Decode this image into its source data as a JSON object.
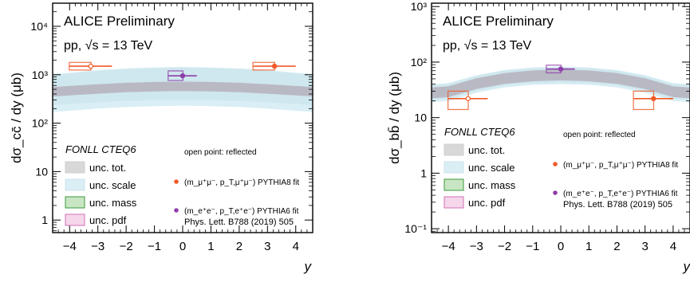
{
  "chart_data": [
    {
      "type": "scatter",
      "title": "ALICE Preliminary",
      "subtitle": "pp, √s = 13 TeV",
      "xlabel": "y",
      "ylabel": "dσ_cc̄ / dy (μb)",
      "xlim": [
        -4.6,
        4.6
      ],
      "ylim": [
        0.5,
        50000
      ],
      "yscale": "log",
      "xticks": [
        "−4",
        "−3",
        "−2",
        "−1",
        "0",
        "1",
        "2",
        "3",
        "4"
      ],
      "yticks": [
        "1",
        "10",
        "10²",
        "10³",
        "10⁴"
      ],
      "grid": false,
      "band_label": "FONLL CTEQ6",
      "note": "open point: reflected",
      "reference": "Phys. Lett. B788 (2019) 505",
      "legend_bands": [
        "unc. tot.",
        "unc. scale",
        "unc. mass",
        "unc. pdf"
      ],
      "legend_points": [
        "(m_μ⁺μ⁻, p_T,μ⁺μ⁻) PYTHIA8 fit",
        "(m_e⁺e⁻, p_T,e⁺e⁻) PYTHIA6 fit"
      ],
      "fonll": {
        "x": [
          -4,
          -3,
          -2,
          -1,
          0,
          1,
          2,
          3,
          4
        ],
        "central": [
          480,
          520,
          560,
          580,
          590,
          580,
          560,
          520,
          480
        ],
        "tot_low": [
          180,
          200,
          215,
          225,
          230,
          225,
          215,
          200,
          180
        ],
        "tot_high": [
          1100,
          1250,
          1350,
          1420,
          1450,
          1420,
          1350,
          1250,
          1100
        ],
        "scale_low": [
          250,
          270,
          290,
          300,
          305,
          300,
          290,
          270,
          250
        ],
        "scale_high": [
          1050,
          1200,
          1300,
          1370,
          1400,
          1370,
          1300,
          1200,
          1050
        ]
      },
      "series": [
        {
          "name": "(m_μ⁺μ⁻, p_T,μ⁺μ⁻) PYTHIA8 fit",
          "color": "#f05a28",
          "points": [
            {
              "x": -3.25,
              "y": 1500,
              "xerr": 0.75,
              "syst_low": 1250,
              "syst_high": 1800,
              "open": true
            },
            {
              "x": 3.25,
              "y": 1500,
              "xerr": 0.75,
              "syst_low": 1250,
              "syst_high": 1800,
              "open": false
            }
          ]
        },
        {
          "name": "(m_e⁺e⁻, p_T,e⁺e⁻) PYTHIA6 fit",
          "color": "#8e3fa8",
          "points": [
            {
              "x": 0,
              "y": 950,
              "xerr": 0.5,
              "syst_low": 760,
              "syst_high": 1200,
              "open": false
            }
          ]
        }
      ]
    },
    {
      "type": "scatter",
      "title": "ALICE Preliminary",
      "subtitle": "pp, √s = 13 TeV",
      "xlabel": "y",
      "ylabel": "dσ_bb̄ / dy (μb)",
      "xlim": [
        -4.6,
        4.6
      ],
      "ylim": [
        0.08,
        1100
      ],
      "yscale": "log",
      "xticks": [
        "−4",
        "−3",
        "−2",
        "−1",
        "0",
        "1",
        "2",
        "3",
        "4"
      ],
      "yticks": [
        "10⁻¹",
        "1",
        "10",
        "10²",
        "10³"
      ],
      "grid": false,
      "band_label": "FONLL CTEQ6",
      "note": "open point: reflected",
      "reference": "Phys. Lett. B788 (2019) 505",
      "legend_bands": [
        "unc. tot.",
        "unc. scale",
        "unc. mass",
        "unc. pdf"
      ],
      "legend_points": [
        "(m_μ⁺μ⁻, p_T,μ⁺μ⁻) PYTHIA8 fit",
        "(m_e⁺e⁻, p_T,e⁺e⁻) PYTHIA6 fit"
      ],
      "fonll": {
        "x": [
          -4,
          -3,
          -2,
          -1,
          0,
          1,
          2,
          3,
          4
        ],
        "central": [
          30,
          42,
          52,
          58,
          60,
          58,
          52,
          42,
          30
        ],
        "tot_low": [
          20,
          28,
          35,
          39,
          40,
          39,
          35,
          28,
          20
        ],
        "tot_high": [
          42,
          58,
          72,
          80,
          83,
          80,
          72,
          58,
          42
        ],
        "scale_low": [
          22,
          30,
          38,
          42,
          43,
          42,
          38,
          30,
          22
        ],
        "scale_high": [
          40,
          56,
          70,
          78,
          80,
          78,
          70,
          56,
          40
        ]
      },
      "series": [
        {
          "name": "(m_μ⁺μ⁻, p_T,μ⁺μ⁻) PYTHIA8 fit",
          "color": "#f05a28",
          "points": [
            {
              "x": -3.3,
              "y": 22,
              "xerr": 0.7,
              "syst_low": 14,
              "syst_high": 30,
              "open": true
            },
            {
              "x": 3.3,
              "y": 22,
              "xerr": 0.7,
              "syst_low": 14,
              "syst_high": 30,
              "open": false
            }
          ]
        },
        {
          "name": "(m_e⁺e⁻, p_T,e⁺e⁻) PYTHIA6 fit",
          "color": "#8e3fa8",
          "points": [
            {
              "x": 0,
              "y": 75,
              "xerr": 0.5,
              "syst_low": 64,
              "syst_high": 88,
              "open": false
            }
          ]
        }
      ]
    }
  ],
  "style": {
    "tot_band": "#d8d8d8",
    "scale_band": "#d9eef5",
    "mass_band": "#c9e6c4",
    "pdf_band": "#f5d6ea",
    "central_band": "#b9b9c4",
    "mass_border": "#3a9a3a",
    "pdf_border": "#d270b5"
  }
}
